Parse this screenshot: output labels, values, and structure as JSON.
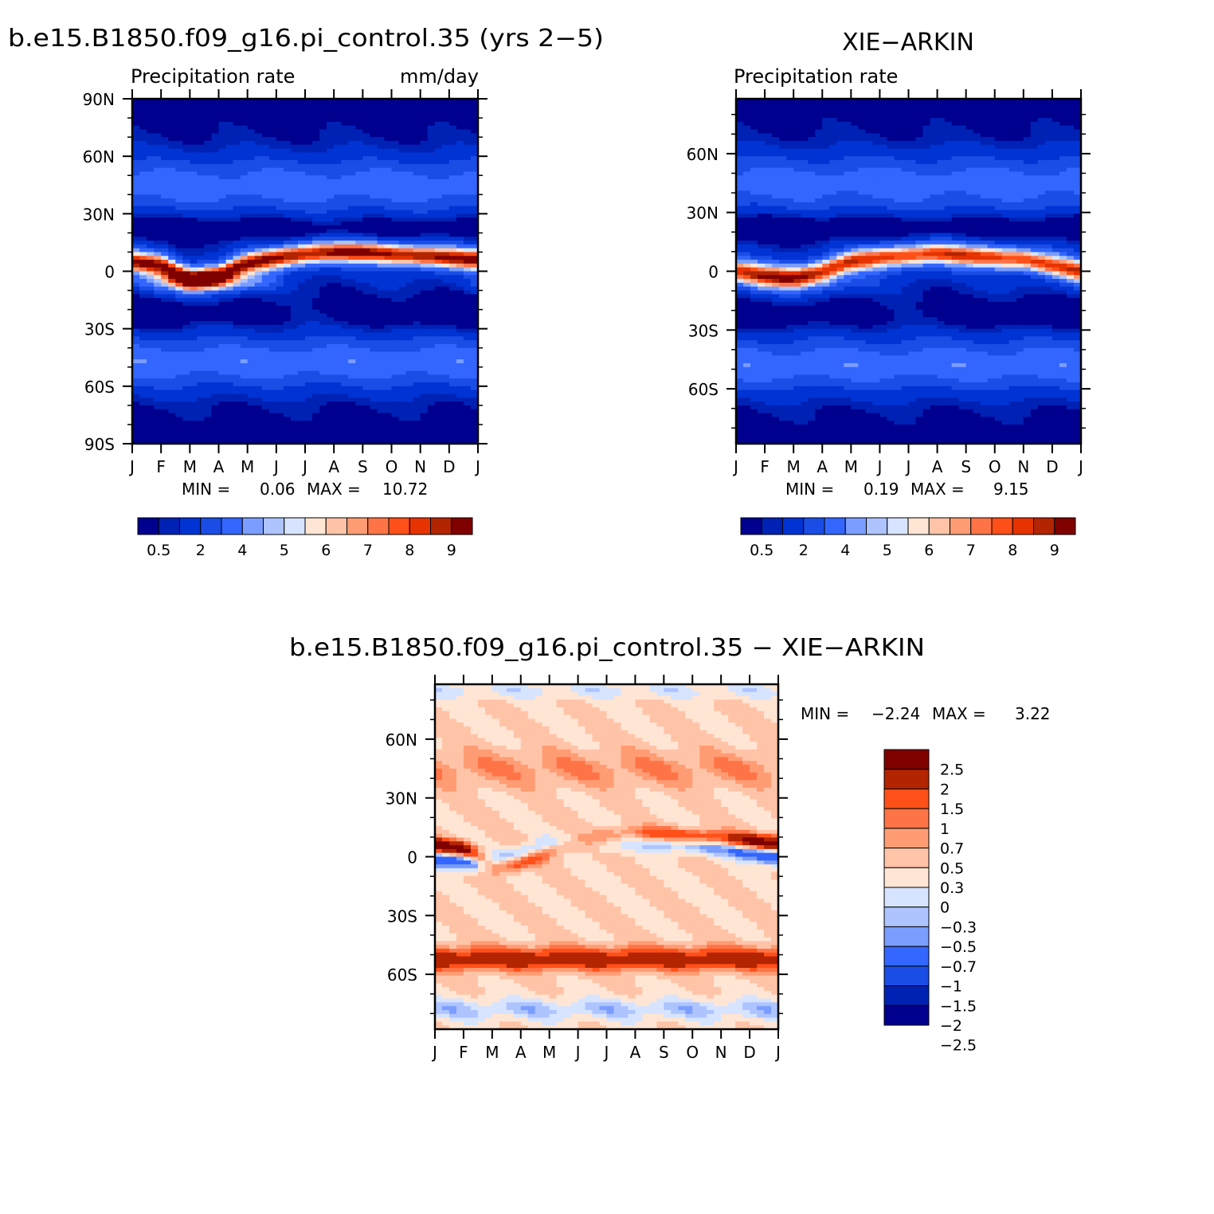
{
  "palette": {
    "precip": [
      "#00008f",
      "#0022b4",
      "#0033d4",
      "#1a4de6",
      "#3366ff",
      "#7a9dff",
      "#adc4ff",
      "#d6e4ff",
      "#ffe5d4",
      "#ffc4a8",
      "#ff9c74",
      "#ff7447",
      "#ff5019",
      "#e63300",
      "#b32400",
      "#800000"
    ],
    "diff": [
      "#00008f",
      "#0022b4",
      "#1a4de6",
      "#3366ff",
      "#7a9dff",
      "#adc4ff",
      "#d6e4ff",
      "#ffe5d4",
      "#ffc4a8",
      "#ff9c74",
      "#ff7447",
      "#ff5019",
      "#b32400",
      "#800000"
    ]
  },
  "chart_data": [
    {
      "type": "heatmap",
      "title": "b.e15.B1850.f09_g16.pi_control.35 (yrs 2−5)",
      "subtitle_left": "Precipitation rate",
      "subtitle_right": "mm/day",
      "x_tick_labels": [
        "J",
        "F",
        "M",
        "A",
        "M",
        "J",
        "J",
        "A",
        "S",
        "O",
        "N",
        "D",
        "J"
      ],
      "y_tick_labels": [
        "90N",
        "60N",
        "30N",
        "0",
        "30S",
        "60S",
        "90S"
      ],
      "ylim": [
        -90,
        90
      ],
      "min_label": "MIN =",
      "min_value": "0.06",
      "max_label": "MAX =",
      "max_value": "10.72",
      "colorbar_labels": [
        "0.5",
        "2",
        "4",
        "5",
        "6",
        "7",
        "8",
        "9"
      ],
      "itcz_peak_lat": [
        5,
        3,
        -4,
        -2,
        4,
        7,
        9,
        10,
        10,
        9,
        8,
        7,
        6
      ],
      "levels": [
        0.5,
        1,
        2,
        3,
        4,
        5,
        5.5,
        6,
        6.5,
        7,
        7.5,
        8,
        8.5,
        9,
        9.5
      ]
    },
    {
      "type": "heatmap",
      "title": "XIE−ARKIN",
      "subtitle_left": "Precipitation rate",
      "x_tick_labels": [
        "J",
        "F",
        "M",
        "A",
        "M",
        "J",
        "J",
        "A",
        "S",
        "O",
        "N",
        "D",
        "J"
      ],
      "y_tick_labels": [
        "60N",
        "30N",
        "0",
        "30S",
        "60S"
      ],
      "ylim": [
        -88,
        88
      ],
      "min_label": "MIN =",
      "min_value": "0.19",
      "max_label": "MAX =",
      "max_value": "9.15",
      "colorbar_labels": [
        "0.5",
        "2",
        "4",
        "5",
        "6",
        "7",
        "8",
        "9"
      ],
      "itcz_peak_lat": [
        0,
        -2,
        -3,
        0,
        5,
        7,
        8,
        9,
        8,
        7,
        6,
        3,
        0
      ]
    },
    {
      "type": "heatmap",
      "title": "b.e15.B1850.f09_g16.pi_control.35 − XIE−ARKIN",
      "x_tick_labels": [
        "J",
        "F",
        "M",
        "A",
        "M",
        "J",
        "J",
        "A",
        "S",
        "O",
        "N",
        "D",
        "J"
      ],
      "y_tick_labels": [
        "60N",
        "30N",
        "0",
        "30S",
        "60S"
      ],
      "ylim": [
        -88,
        88
      ],
      "min_label": "MIN =",
      "min_value": "−2.24",
      "max_label": "MAX =",
      "max_value": "3.22",
      "colorbar_labels": [
        "2.5",
        "2",
        "1.5",
        "1",
        "0.7",
        "0.5",
        "0.3",
        "0",
        "−0.3",
        "−0.5",
        "−0.7",
        "−1",
        "−1.5",
        "−2",
        "−2.5"
      ],
      "levels": [
        -2.5,
        -2,
        -1.5,
        -1,
        -0.7,
        -0.5,
        -0.3,
        0,
        0.3,
        0.5,
        0.7,
        1,
        1.5,
        2,
        2.5
      ]
    }
  ]
}
